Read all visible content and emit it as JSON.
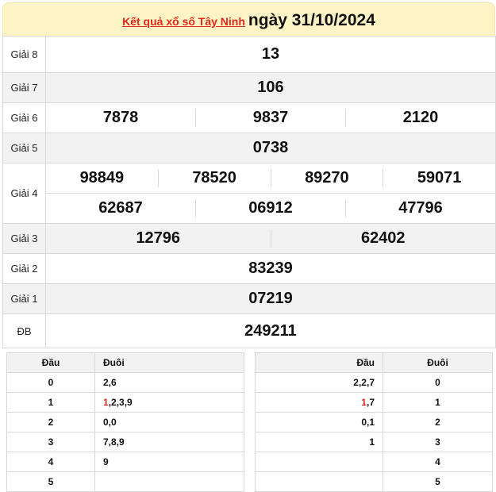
{
  "header": {
    "link_text": "Kết quả xổ số Tây Ninh",
    "date_text": "ngày 31/10/2024"
  },
  "colors": {
    "accent": "#e4261b",
    "header_bg": "#fdf3c4"
  },
  "prizes": {
    "g8": {
      "label": "Giải 8",
      "numbers": [
        "13"
      ]
    },
    "g7": {
      "label": "Giải 7",
      "numbers": [
        "106"
      ]
    },
    "g6": {
      "label": "Giải 6",
      "numbers": [
        "7878",
        "9837",
        "2120"
      ]
    },
    "g5": {
      "label": "Giải 5",
      "numbers": [
        "0738"
      ]
    },
    "g4": {
      "label": "Giải 4",
      "numbers": [
        "98849",
        "78520",
        "89270",
        "59071",
        "62687",
        "06912",
        "47796"
      ]
    },
    "g3": {
      "label": "Giải 3",
      "numbers": [
        "12796",
        "62402"
      ]
    },
    "g2": {
      "label": "Giải 2",
      "numbers": [
        "83239"
      ]
    },
    "g1": {
      "label": "Giải 1",
      "numbers": [
        "07219"
      ]
    },
    "db": {
      "label": "ĐB",
      "numbers": [
        "249211"
      ]
    }
  },
  "dau_table": {
    "headers": [
      "Đầu",
      "Đuôi"
    ],
    "rows": [
      {
        "key": "0",
        "hl": "",
        "rest": "2,6"
      },
      {
        "key": "1",
        "hl": "1",
        "rest": ",2,3,9"
      },
      {
        "key": "2",
        "hl": "",
        "rest": "0,0"
      },
      {
        "key": "3",
        "hl": "",
        "rest": "7,8,9"
      },
      {
        "key": "4",
        "hl": "",
        "rest": "9"
      },
      {
        "key": "5",
        "hl": "",
        "rest": ""
      }
    ]
  },
  "duoi_table": {
    "headers": [
      "Đầu",
      "Đuôi"
    ],
    "rows": [
      {
        "key": "0",
        "hl": "",
        "rest": "2,2,7"
      },
      {
        "key": "1",
        "hl": "1",
        "rest": ",7"
      },
      {
        "key": "2",
        "hl": "",
        "rest": "0,1"
      },
      {
        "key": "3",
        "hl": "",
        "rest": "1"
      },
      {
        "key": "4",
        "hl": "",
        "rest": ""
      },
      {
        "key": "5",
        "hl": "",
        "rest": ""
      }
    ]
  }
}
